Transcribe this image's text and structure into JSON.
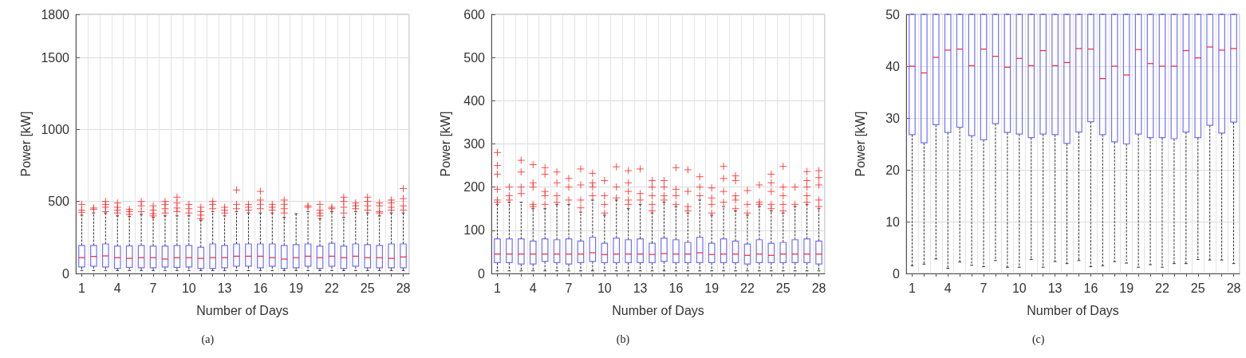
{
  "chart_data": [
    {
      "type": "box",
      "xlabel": "Number of Days",
      "ylabel": "Power [kW]",
      "annotations": [
        "(a)"
      ],
      "color": "#7070ff",
      "marker": "cross",
      "grid": true,
      "categories": [
        "1",
        null,
        null,
        "4",
        null,
        null,
        "7",
        null,
        null,
        "10",
        null,
        null,
        "13",
        null,
        null,
        "16",
        null,
        null,
        "19",
        null,
        null,
        "22",
        null,
        null,
        "25",
        null,
        null,
        "28"
      ],
      "ylim": [
        0,
        1800
      ],
      "yticks": [
        0,
        500,
        1000,
        1500,
        1800
      ],
      "boxes": [
        {
          "low": 20,
          "q1": 45,
          "median": 110,
          "q3": 195,
          "high": 405,
          "outliers": [
            425,
            440,
            480
          ]
        },
        {
          "low": 20,
          "q1": 50,
          "median": 118,
          "q3": 195,
          "high": 420,
          "outliers": [
            445,
            455
          ]
        },
        {
          "low": 20,
          "q1": 45,
          "median": 122,
          "q3": 205,
          "high": 420,
          "outliers": [
            430,
            460,
            480,
            500
          ]
        },
        {
          "low": 20,
          "q1": 35,
          "median": 110,
          "q3": 190,
          "high": 400,
          "outliers": [
            420,
            440,
            460,
            490
          ]
        },
        {
          "low": 20,
          "q1": 42,
          "median": 105,
          "q3": 192,
          "high": 395,
          "outliers": [
            410,
            430,
            445
          ]
        },
        {
          "low": 20,
          "q1": 40,
          "median": 110,
          "q3": 195,
          "high": 410,
          "outliers": [
            430,
            470,
            500
          ]
        },
        {
          "low": 20,
          "q1": 40,
          "median": 110,
          "q3": 190,
          "high": 390,
          "outliers": [
            400,
            415,
            440,
            470
          ]
        },
        {
          "low": 20,
          "q1": 45,
          "median": 100,
          "q3": 190,
          "high": 400,
          "outliers": [
            420,
            450,
            480,
            500
          ]
        },
        {
          "low": 20,
          "q1": 42,
          "median": 110,
          "q3": 195,
          "high": 400,
          "outliers": [
            430,
            455,
            490,
            530
          ]
        },
        {
          "low": 20,
          "q1": 45,
          "median": 110,
          "q3": 195,
          "high": 400,
          "outliers": [
            420,
            450,
            480
          ]
        },
        {
          "low": 20,
          "q1": 35,
          "median": 105,
          "q3": 182,
          "high": 370,
          "outliers": [
            380,
            405,
            430,
            460
          ]
        },
        {
          "low": 20,
          "q1": 35,
          "median": 110,
          "q3": 205,
          "high": 430,
          "outliers": [
            450,
            480,
            500
          ]
        },
        {
          "low": 20,
          "q1": 40,
          "median": 110,
          "q3": 195,
          "high": 400,
          "outliers": [
            420,
            440,
            460
          ]
        },
        {
          "low": 20,
          "q1": 50,
          "median": 120,
          "q3": 205,
          "high": 430,
          "outliers": [
            450,
            480,
            580
          ]
        },
        {
          "low": 20,
          "q1": 50,
          "median": 120,
          "q3": 205,
          "high": 420,
          "outliers": [
            440,
            460,
            480
          ]
        },
        {
          "low": 20,
          "q1": 40,
          "median": 120,
          "q3": 205,
          "high": 420,
          "outliers": [
            450,
            480,
            510,
            570
          ]
        },
        {
          "low": 20,
          "q1": 50,
          "median": 110,
          "q3": 205,
          "high": 420,
          "outliers": [
            440,
            460,
            480
          ]
        },
        {
          "low": 20,
          "q1": 35,
          "median": 100,
          "q3": 195,
          "high": 390,
          "outliers": [
            420,
            450,
            480,
            510
          ]
        },
        {
          "low": 20,
          "q1": 40,
          "median": 110,
          "q3": 200,
          "high": 415
        },
        {
          "low": 20,
          "q1": 50,
          "median": 120,
          "q3": 205,
          "high": 430,
          "outliers": [
            460,
            470
          ]
        },
        {
          "low": 20,
          "q1": 35,
          "median": 110,
          "q3": 190,
          "high": 380,
          "outliers": [
            400,
            420,
            440,
            480
          ]
        },
        {
          "low": 20,
          "q1": 50,
          "median": 120,
          "q3": 210,
          "high": 430,
          "outliers": [
            450,
            460
          ]
        },
        {
          "low": 20,
          "q1": 35,
          "median": 110,
          "q3": 190,
          "high": 390,
          "outliers": [
            420,
            460,
            500,
            530
          ]
        },
        {
          "low": 20,
          "q1": 50,
          "median": 120,
          "q3": 205,
          "high": 430,
          "outliers": [
            450,
            470,
            490
          ]
        },
        {
          "low": 20,
          "q1": 40,
          "median": 110,
          "q3": 200,
          "high": 420,
          "outliers": [
            440,
            470,
            500,
            530
          ]
        },
        {
          "low": 20,
          "q1": 40,
          "median": 110,
          "q3": 195,
          "high": 400,
          "outliers": [
            420,
            430,
            470,
            490
          ]
        },
        {
          "low": 20,
          "q1": 40,
          "median": 105,
          "q3": 205,
          "high": 420,
          "outliers": [
            440,
            460,
            490,
            510
          ]
        },
        {
          "low": 20,
          "q1": 40,
          "median": 115,
          "q3": 205,
          "high": 420,
          "outliers": [
            440,
            470,
            520,
            590
          ]
        }
      ]
    },
    {
      "type": "box",
      "xlabel": "Number of Days",
      "ylabel": "Power [kW]",
      "annotations": [
        "(b)"
      ],
      "color": "#7070ff",
      "marker": "cross",
      "grid": true,
      "categories": [
        "1",
        null,
        null,
        "4",
        null,
        null,
        "7",
        null,
        null,
        "10",
        null,
        null,
        "13",
        null,
        null,
        "16",
        null,
        null,
        "19",
        null,
        null,
        "22",
        null,
        null,
        "25",
        null,
        null,
        "28"
      ],
      "ylim": [
        0,
        600
      ],
      "yticks": [
        0,
        100,
        200,
        300,
        400,
        500,
        600
      ],
      "boxes": [
        {
          "low": 6,
          "q1": 25,
          "median": 45,
          "q3": 80,
          "high": 160,
          "outliers": [
            165,
            170,
            195,
            230,
            250,
            280
          ]
        },
        {
          "low": 6,
          "q1": 25,
          "median": 45,
          "q3": 80,
          "high": 165,
          "outliers": [
            170,
            180,
            200
          ]
        },
        {
          "low": 6,
          "q1": 22,
          "median": 45,
          "q3": 80,
          "high": 165,
          "outliers": [
            185,
            200,
            235,
            262
          ]
        },
        {
          "low": 6,
          "q1": 22,
          "median": 45,
          "q3": 75,
          "high": 150,
          "outliers": [
            155,
            160,
            200,
            210,
            252
          ]
        },
        {
          "low": 6,
          "q1": 28,
          "median": 45,
          "q3": 80,
          "high": 150,
          "outliers": [
            160,
            180,
            190,
            230,
            245
          ]
        },
        {
          "low": 6,
          "q1": 25,
          "median": 45,
          "q3": 78,
          "high": 160,
          "outliers": [
            165,
            180,
            210,
            235
          ]
        },
        {
          "low": 6,
          "q1": 22,
          "median": 45,
          "q3": 80,
          "high": 160,
          "outliers": [
            170,
            200,
            220
          ]
        },
        {
          "low": 6,
          "q1": 25,
          "median": 45,
          "q3": 75,
          "high": 142,
          "outliers": [
            152,
            170,
            205,
            242
          ]
        },
        {
          "low": 6,
          "q1": 28,
          "median": 48,
          "q3": 84,
          "high": 170,
          "outliers": [
            180,
            200,
            210,
            232
          ]
        },
        {
          "low": 6,
          "q1": 25,
          "median": 44,
          "q3": 70,
          "high": 135,
          "outliers": [
            140,
            160,
            180,
            215
          ]
        },
        {
          "low": 6,
          "q1": 25,
          "median": 45,
          "q3": 82,
          "high": 170,
          "outliers": [
            175,
            200,
            247
          ]
        },
        {
          "low": 6,
          "q1": 25,
          "median": 45,
          "q3": 78,
          "high": 150,
          "outliers": [
            160,
            170,
            190,
            210,
            238
          ]
        },
        {
          "low": 6,
          "q1": 25,
          "median": 45,
          "q3": 80,
          "high": 160,
          "outliers": [
            170,
            185,
            242
          ]
        },
        {
          "low": 6,
          "q1": 25,
          "median": 44,
          "q3": 70,
          "high": 140,
          "outliers": [
            145,
            160,
            180,
            200,
            215
          ]
        },
        {
          "low": 6,
          "q1": 28,
          "median": 46,
          "q3": 82,
          "high": 165,
          "outliers": [
            170,
            180,
            200,
            215
          ]
        },
        {
          "low": 6,
          "q1": 25,
          "median": 45,
          "q3": 78,
          "high": 155,
          "outliers": [
            160,
            180,
            195,
            245
          ]
        },
        {
          "low": 6,
          "q1": 25,
          "median": 45,
          "q3": 72,
          "high": 140,
          "outliers": [
            145,
            155,
            190,
            240
          ]
        },
        {
          "low": 6,
          "q1": 25,
          "median": 48,
          "q3": 84,
          "high": 170,
          "outliers": [
            180,
            200,
            224
          ]
        },
        {
          "low": 6,
          "q1": 25,
          "median": 44,
          "q3": 70,
          "high": 135,
          "outliers": [
            140,
            160,
            175,
            198
          ]
        },
        {
          "low": 6,
          "q1": 25,
          "median": 45,
          "q3": 80,
          "high": 155,
          "outliers": [
            165,
            190,
            220,
            248
          ]
        },
        {
          "low": 6,
          "q1": 25,
          "median": 45,
          "q3": 75,
          "high": 145,
          "outliers": [
            150,
            170,
            180,
            215,
            226
          ]
        },
        {
          "low": 6,
          "q1": 22,
          "median": 42,
          "q3": 68,
          "high": 135,
          "outliers": [
            140,
            160,
            192
          ]
        },
        {
          "low": 6,
          "q1": 25,
          "median": 45,
          "q3": 78,
          "high": 155,
          "outliers": [
            160,
            165,
            205
          ]
        },
        {
          "low": 6,
          "q1": 25,
          "median": 42,
          "q3": 70,
          "high": 145,
          "outliers": [
            150,
            160,
            190,
            210,
            230
          ]
        },
        {
          "low": 6,
          "q1": 25,
          "median": 45,
          "q3": 72,
          "high": 140,
          "outliers": [
            145,
            160,
            180,
            200,
            248
          ]
        },
        {
          "low": 6,
          "q1": 25,
          "median": 45,
          "q3": 78,
          "high": 155,
          "outliers": [
            160,
            200
          ]
        },
        {
          "low": 6,
          "q1": 25,
          "median": 45,
          "q3": 80,
          "high": 160,
          "outliers": [
            165,
            180,
            200,
            215,
            236
          ]
        },
        {
          "low": 6,
          "q1": 22,
          "median": 45,
          "q3": 75,
          "high": 150,
          "outliers": [
            155,
            170,
            205,
            222,
            238
          ]
        }
      ]
    },
    {
      "type": "box",
      "xlabel": "Number of Days",
      "ylabel": "Power [kW]",
      "annotations": [
        "(c)"
      ],
      "color": "#7070ff",
      "grid": true,
      "categories": [
        "1",
        null,
        null,
        "4",
        null,
        null,
        "7",
        null,
        null,
        "10",
        null,
        null,
        "13",
        null,
        null,
        "16",
        null,
        null,
        "19",
        null,
        null,
        "22",
        null,
        null,
        "25",
        null,
        null,
        "28"
      ],
      "ylim": [
        0,
        50
      ],
      "yticks": [
        0,
        10,
        20,
        30,
        40,
        50
      ],
      "boxes": [
        {
          "low": 1.5,
          "q1": 26.8,
          "median": 40,
          "q3": 50,
          "high": 50
        },
        {
          "low": 1.8,
          "q1": 25.2,
          "median": 38.7,
          "q3": 50,
          "high": 50
        },
        {
          "low": 2.8,
          "q1": 28.7,
          "median": 41.7,
          "q3": 50,
          "high": 50
        },
        {
          "low": 1,
          "q1": 27.2,
          "median": 43.1,
          "q3": 50,
          "high": 50
        },
        {
          "low": 2.2,
          "q1": 28.2,
          "median": 43.3,
          "q3": 50,
          "high": 50
        },
        {
          "low": 1.6,
          "q1": 26.6,
          "median": 40.1,
          "q3": 50,
          "high": 50
        },
        {
          "low": 1.3,
          "q1": 25.8,
          "median": 43.3,
          "q3": 50,
          "high": 50
        },
        {
          "low": 2.5,
          "q1": 28.9,
          "median": 41.9,
          "q3": 50,
          "high": 50
        },
        {
          "low": 1.2,
          "q1": 27.2,
          "median": 39.8,
          "q3": 50,
          "high": 50
        },
        {
          "low": 1.2,
          "q1": 26.9,
          "median": 41.5,
          "q3": 50,
          "high": 50
        },
        {
          "low": 2.7,
          "q1": 26.2,
          "median": 40.1,
          "q3": 50,
          "high": 50
        },
        {
          "low": 1.2,
          "q1": 26.9,
          "median": 43,
          "q3": 50,
          "high": 50
        },
        {
          "low": 2.3,
          "q1": 26.8,
          "median": 40.1,
          "q3": 50,
          "high": 50
        },
        {
          "low": 1.9,
          "q1": 25.1,
          "median": 40.7,
          "q3": 50,
          "high": 50
        },
        {
          "low": 2.5,
          "q1": 27.3,
          "median": 43.4,
          "q3": 50,
          "high": 50
        },
        {
          "low": 1.3,
          "q1": 29.3,
          "median": 43.3,
          "q3": 50,
          "high": 50
        },
        {
          "low": 1.5,
          "q1": 26.8,
          "median": 37.6,
          "q3": 50,
          "high": 50
        },
        {
          "low": 2.3,
          "q1": 25.4,
          "median": 40,
          "q3": 50,
          "high": 50
        },
        {
          "low": 2,
          "q1": 25,
          "median": 38.3,
          "q3": 50,
          "high": 50
        },
        {
          "low": 1.2,
          "q1": 26.9,
          "median": 43.2,
          "q3": 50,
          "high": 50
        },
        {
          "low": 1.7,
          "q1": 26.2,
          "median": 40.5,
          "q3": 50,
          "high": 50
        },
        {
          "low": 1.2,
          "q1": 26.2,
          "median": 40,
          "q3": 50,
          "high": 50
        },
        {
          "low": 1.9,
          "q1": 26,
          "median": 40,
          "q3": 50,
          "high": 50
        },
        {
          "low": 1.9,
          "q1": 27.3,
          "median": 43,
          "q3": 50,
          "high": 50
        },
        {
          "low": 2.7,
          "q1": 26.2,
          "median": 41.6,
          "q3": 50,
          "high": 50
        },
        {
          "low": 2.6,
          "q1": 28.6,
          "median": 43.7,
          "q3": 50,
          "high": 50
        },
        {
          "low": 2.6,
          "q1": 27.1,
          "median": 43.1,
          "q3": 50,
          "high": 50
        },
        {
          "low": 1.9,
          "q1": 29.2,
          "median": 43.4,
          "q3": 50,
          "high": 50
        }
      ]
    }
  ]
}
